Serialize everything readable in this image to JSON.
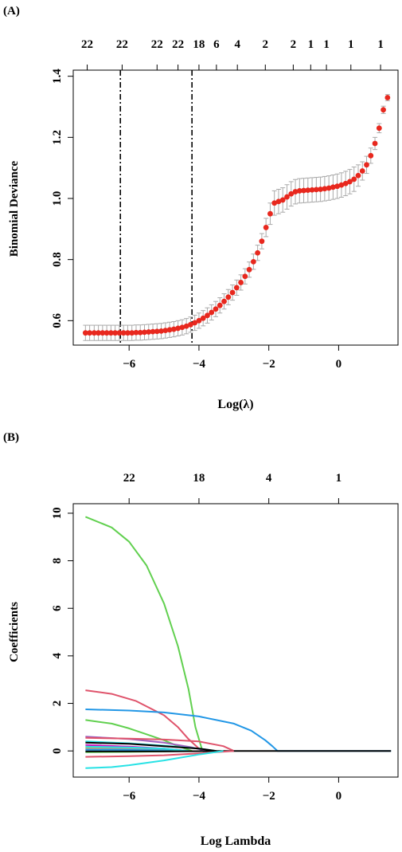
{
  "panels": [
    {
      "label": "(A)",
      "top_axis_labels": [
        "22",
        "22",
        "22",
        "22",
        "18",
        "6",
        "4",
        "2",
        "2",
        "1",
        "1",
        "1",
        "1"
      ],
      "chart_data": {
        "type": "scatter",
        "xlabel": "Log(λ)",
        "ylabel": "Binomial Deviance",
        "xlim": [
          -7.6,
          1.7
        ],
        "ylim": [
          0.52,
          1.42
        ],
        "x_ticks": [
          -6,
          -4,
          -2,
          0
        ],
        "y_ticks": [
          0.6,
          0.8,
          1.0,
          1.2,
          1.4
        ],
        "y_tick_labels": [
          "0.6",
          "0.8",
          "1.0",
          "1.2",
          "1.4"
        ],
        "top_ticks_x": [
          -7.2,
          -6.2,
          -5.2,
          -4.6,
          -4.0,
          -3.5,
          -2.9,
          -2.1,
          -1.3,
          -0.8,
          -0.35,
          0.35,
          1.2
        ],
        "vlines": [
          -6.25,
          -4.2
        ],
        "point_color": "#e8281e",
        "errorbar_color": "#aaaaaa",
        "series": [
          {
            "x": [
              -7.25,
              -7.13,
              -7.0,
              -6.88,
              -6.76,
              -6.64,
              -6.52,
              -6.4,
              -6.28,
              -6.16,
              -6.04,
              -5.92,
              -5.8,
              -5.68,
              -5.56,
              -5.44,
              -5.32,
              -5.2,
              -5.08,
              -4.96,
              -4.84,
              -4.72,
              -4.6,
              -4.48,
              -4.36,
              -4.24,
              -4.12,
              -4.0,
              -3.88,
              -3.76,
              -3.64,
              -3.52,
              -3.4,
              -3.28,
              -3.16,
              -3.04,
              -2.92,
              -2.8,
              -2.68,
              -2.56,
              -2.44,
              -2.32,
              -2.2,
              -2.08,
              -1.96,
              -1.84,
              -1.72,
              -1.6,
              -1.48,
              -1.36,
              -1.24,
              -1.12,
              -1.0,
              -0.88,
              -0.76,
              -0.64,
              -0.52,
              -0.4,
              -0.28,
              -0.16,
              -0.04,
              0.08,
              0.2,
              0.32,
              0.44,
              0.56,
              0.68,
              0.8,
              0.92,
              1.04,
              1.16,
              1.28,
              1.4
            ],
            "y": [
              0.56,
              0.56,
              0.56,
              0.56,
              0.56,
              0.56,
              0.56,
              0.56,
              0.56,
              0.56,
              0.56,
              0.56,
              0.561,
              0.561,
              0.562,
              0.563,
              0.564,
              0.565,
              0.566,
              0.568,
              0.57,
              0.572,
              0.575,
              0.578,
              0.582,
              0.587,
              0.593,
              0.6,
              0.608,
              0.617,
              0.627,
              0.638,
              0.65,
              0.663,
              0.677,
              0.692,
              0.708,
              0.725,
              0.745,
              0.767,
              0.793,
              0.822,
              0.86,
              0.905,
              0.95,
              0.985,
              0.99,
              0.995,
              1.005,
              1.015,
              1.022,
              1.025,
              1.026,
              1.027,
              1.028,
              1.029,
              1.03,
              1.032,
              1.034,
              1.037,
              1.04,
              1.044,
              1.049,
              1.055,
              1.063,
              1.075,
              1.09,
              1.11,
              1.14,
              1.18,
              1.23,
              1.29,
              1.33
            ],
            "err": [
              0.025,
              0.025,
              0.025,
              0.025,
              0.025,
              0.025,
              0.025,
              0.025,
              0.025,
              0.025,
              0.025,
              0.025,
              0.025,
              0.025,
              0.025,
              0.025,
              0.025,
              0.025,
              0.025,
              0.025,
              0.025,
              0.025,
              0.025,
              0.025,
              0.025,
              0.025,
              0.025,
              0.025,
              0.025,
              0.025,
              0.025,
              0.025,
              0.025,
              0.025,
              0.025,
              0.025,
              0.025,
              0.025,
              0.025,
              0.025,
              0.025,
              0.025,
              0.025,
              0.03,
              0.035,
              0.04,
              0.04,
              0.04,
              0.04,
              0.04,
              0.04,
              0.04,
              0.04,
              0.04,
              0.04,
              0.04,
              0.04,
              0.04,
              0.04,
              0.04,
              0.04,
              0.04,
              0.04,
              0.04,
              0.04,
              0.035,
              0.03,
              0.028,
              0.025,
              0.02,
              0.015,
              0.012,
              0.01
            ]
          }
        ]
      }
    },
    {
      "label": "(B)",
      "top_axis_labels": [
        "22",
        "18",
        "4",
        "1"
      ],
      "chart_data": {
        "type": "line",
        "xlabel": "Log Lambda",
        "ylabel": "Coefficients",
        "xlim": [
          -7.6,
          1.7
        ],
        "ylim": [
          -1.1,
          10.4
        ],
        "x_ticks": [
          -6,
          -4,
          -2,
          0
        ],
        "y_ticks": [
          0,
          2,
          4,
          6,
          8,
          10
        ],
        "top_ticks_x": [
          -6.0,
          -4.0,
          -2.0,
          0.0
        ],
        "series": [
          {
            "color": "#61d04f",
            "x": [
              -7.25,
              -6.5,
              -6.0,
              -5.5,
              -5.0,
              -4.6,
              -4.3,
              -4.1,
              -3.9
            ],
            "y": [
              9.85,
              9.4,
              8.8,
              7.8,
              6.2,
              4.4,
              2.6,
              1.0,
              0.0
            ]
          },
          {
            "color": "#df536b",
            "x": [
              -7.25,
              -6.5,
              -5.8,
              -5.0,
              -4.6,
              -4.3,
              -4.0,
              -3.8
            ],
            "y": [
              2.55,
              2.4,
              2.1,
              1.5,
              1.0,
              0.5,
              0.1,
              0.0
            ]
          },
          {
            "color": "#2297e6",
            "x": [
              -7.25,
              -6.0,
              -5.0,
              -4.0,
              -3.0,
              -2.5,
              -2.1,
              -1.9,
              -1.75,
              1.5
            ],
            "y": [
              1.75,
              1.7,
              1.62,
              1.45,
              1.15,
              0.85,
              0.45,
              0.2,
              0.0,
              0.0
            ]
          },
          {
            "color": "#61d04f",
            "x": [
              -7.25,
              -6.5,
              -6.0,
              -5.5,
              -5.0,
              -4.6,
              -4.2
            ],
            "y": [
              1.3,
              1.15,
              0.95,
              0.7,
              0.45,
              0.2,
              0.0
            ]
          },
          {
            "color": "#9e5ebd",
            "x": [
              -7.25,
              -6.0,
              -5.0,
              -4.2,
              -3.8
            ],
            "y": [
              0.6,
              0.5,
              0.35,
              0.15,
              0.0
            ]
          },
          {
            "color": "#df536b",
            "x": [
              -7.25,
              -6.0,
              -5.0,
              -4.0,
              -3.3,
              -3.0
            ],
            "y": [
              0.55,
              0.52,
              0.48,
              0.4,
              0.2,
              0.0
            ]
          },
          {
            "color": "#28e2e5",
            "x": [
              -7.25,
              -6.0,
              -5.0,
              -4.0,
              -3.5
            ],
            "y": [
              0.4,
              0.32,
              0.22,
              0.1,
              0.0
            ]
          },
          {
            "color": "#000000",
            "x": [
              -7.25,
              -6.0,
              -5.0,
              -4.0,
              -3.5
            ],
            "y": [
              0.35,
              0.3,
              0.2,
              0.1,
              0.0
            ]
          },
          {
            "color": "#cd0bbc",
            "x": [
              -7.25,
              -6.0,
              -5.0,
              -4.3
            ],
            "y": [
              0.25,
              0.18,
              0.1,
              0.0
            ]
          },
          {
            "color": "#f5c710",
            "x": [
              -7.25,
              -6.0,
              -5.0,
              -4.3
            ],
            "y": [
              0.15,
              0.12,
              0.06,
              0.0
            ]
          },
          {
            "color": "#9e9e9e",
            "x": [
              -7.25,
              -6.0,
              -5.0,
              -4.3
            ],
            "y": [
              0.1,
              0.08,
              0.05,
              0.0
            ]
          },
          {
            "color": "#2297e6",
            "x": [
              -7.25,
              -6.0,
              -5.0,
              -4.3
            ],
            "y": [
              0.05,
              0.04,
              0.02,
              0.0
            ]
          },
          {
            "color": "#61d04f",
            "x": [
              -7.25,
              -6.0,
              -5.0,
              -4.3
            ],
            "y": [
              -0.05,
              -0.04,
              -0.02,
              0.0
            ]
          },
          {
            "color": "#28e2e5",
            "x": [
              -7.25,
              -6.0,
              -5.0,
              -4.3
            ],
            "y": [
              0.18,
              0.15,
              0.1,
              0.0
            ]
          },
          {
            "color": "#000000",
            "x": [
              -7.25,
              -6.0,
              -5.0,
              -4.0,
              -3.5,
              1.5
            ],
            "y": [
              -0.02,
              -0.02,
              -0.02,
              -0.01,
              0.0,
              0.0
            ]
          },
          {
            "color": "#df536b",
            "x": [
              -7.25,
              -6.0,
              -5.0,
              -4.0,
              -3.0
            ],
            "y": [
              -0.25,
              -0.22,
              -0.18,
              -0.1,
              0.0
            ]
          },
          {
            "color": "#28e2e5",
            "x": [
              -7.25,
              -6.5,
              -6.0,
              -5.0,
              -4.0,
              -3.3
            ],
            "y": [
              -0.72,
              -0.68,
              -0.6,
              -0.4,
              -0.15,
              0.0
            ]
          }
        ]
      }
    }
  ]
}
